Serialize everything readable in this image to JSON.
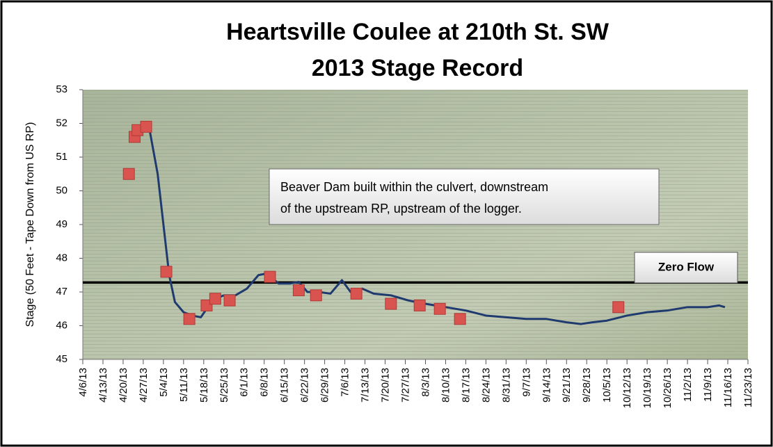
{
  "chart_data": {
    "type": "line",
    "title": "Heartsville Coulee at 210th St. SW",
    "subtitle": "2013 Stage Record",
    "y_label": "Stage (50 Feet - Tape Down from US RP)",
    "ylim": [
      45,
      53
    ],
    "yticks": [
      45,
      46,
      47,
      48,
      49,
      50,
      51,
      52,
      53
    ],
    "xlim": [
      "2013-04-06",
      "2013-11-23"
    ],
    "xticks": [
      {
        "value": "2013-04-06",
        "label": "4/6/13"
      },
      {
        "value": "2013-04-13",
        "label": "4/13/13"
      },
      {
        "value": "2013-04-20",
        "label": "4/20/13"
      },
      {
        "value": "2013-04-27",
        "label": "4/27/13"
      },
      {
        "value": "2013-05-04",
        "label": "5/4/13"
      },
      {
        "value": "2013-05-11",
        "label": "5/11/13"
      },
      {
        "value": "2013-05-18",
        "label": "5/18/13"
      },
      {
        "value": "2013-05-25",
        "label": "5/25/13"
      },
      {
        "value": "2013-06-01",
        "label": "6/1/13"
      },
      {
        "value": "2013-06-08",
        "label": "6/8/13"
      },
      {
        "value": "2013-06-15",
        "label": "6/15/13"
      },
      {
        "value": "2013-06-22",
        "label": "6/22/13"
      },
      {
        "value": "2013-06-29",
        "label": "6/29/13"
      },
      {
        "value": "2013-07-06",
        "label": "7/6/13"
      },
      {
        "value": "2013-07-13",
        "label": "7/13/13"
      },
      {
        "value": "2013-07-20",
        "label": "7/20/13"
      },
      {
        "value": "2013-07-27",
        "label": "7/27/13"
      },
      {
        "value": "2013-08-03",
        "label": "8/3/13"
      },
      {
        "value": "2013-08-10",
        "label": "8/10/13"
      },
      {
        "value": "2013-08-17",
        "label": "8/17/13"
      },
      {
        "value": "2013-08-24",
        "label": "8/24/13"
      },
      {
        "value": "2013-08-31",
        "label": "8/31/13"
      },
      {
        "value": "2013-09-07",
        "label": "9/7/13"
      },
      {
        "value": "2013-09-14",
        "label": "9/14/13"
      },
      {
        "value": "2013-09-21",
        "label": "9/21/13"
      },
      {
        "value": "2013-09-28",
        "label": "9/28/13"
      },
      {
        "value": "2013-10-05",
        "label": "10/5/13"
      },
      {
        "value": "2013-10-12",
        "label": "10/12/13"
      },
      {
        "value": "2013-10-19",
        "label": "10/19/13"
      },
      {
        "value": "2013-10-26",
        "label": "10/26/13"
      },
      {
        "value": "2013-11-02",
        "label": "11/2/13"
      },
      {
        "value": "2013-11-09",
        "label": "11/9/13"
      },
      {
        "value": "2013-11-16",
        "label": "11/16/13"
      },
      {
        "value": "2013-11-23",
        "label": "11/23/13"
      }
    ],
    "series": [
      {
        "kind": "line",
        "color": "#1f3a6e",
        "x": [
          "2013-04-24",
          "2013-04-26",
          "2013-04-29",
          "2013-05-02",
          "2013-05-04",
          "2013-05-06",
          "2013-05-08",
          "2013-05-11",
          "2013-05-14",
          "2013-05-17",
          "2013-05-19",
          "2013-05-22",
          "2013-05-25",
          "2013-05-29",
          "2013-06-02",
          "2013-06-06",
          "2013-06-09",
          "2013-06-13",
          "2013-06-17",
          "2013-06-20",
          "2013-06-23",
          "2013-06-27",
          "2013-07-01",
          "2013-07-05",
          "2013-07-08",
          "2013-07-12",
          "2013-07-16",
          "2013-07-22",
          "2013-07-28",
          "2013-08-03",
          "2013-08-10",
          "2013-08-17",
          "2013-08-24",
          "2013-08-31",
          "2013-09-07",
          "2013-09-14",
          "2013-09-21",
          "2013-09-26",
          "2013-09-30",
          "2013-10-05",
          "2013-10-12",
          "2013-10-19",
          "2013-10-26",
          "2013-11-02",
          "2013-11-09",
          "2013-11-13",
          "2013-11-15"
        ],
        "values": [
          51.5,
          51.8,
          51.9,
          50.5,
          49,
          47.5,
          46.7,
          46.4,
          46.3,
          46.25,
          46.5,
          46.8,
          46.9,
          46.9,
          47.1,
          47.5,
          47.55,
          47.25,
          47.25,
          47.3,
          47.0,
          47.0,
          46.95,
          47.35,
          47.0,
          47.1,
          46.95,
          46.9,
          46.75,
          46.65,
          46.55,
          46.45,
          46.3,
          46.25,
          46.2,
          46.2,
          46.1,
          46.05,
          46.1,
          46.15,
          46.3,
          46.4,
          46.45,
          46.55,
          46.55,
          46.6,
          46.55
        ]
      },
      {
        "kind": "scatter",
        "color": "#d9534f",
        "x": [
          "2013-04-22",
          "2013-04-24",
          "2013-04-25",
          "2013-04-28",
          "2013-05-05",
          "2013-05-13",
          "2013-05-19",
          "2013-05-22",
          "2013-05-27",
          "2013-06-10",
          "2013-06-20",
          "2013-06-26",
          "2013-07-10",
          "2013-07-22",
          "2013-08-01",
          "2013-08-08",
          "2013-08-15",
          "2013-10-09"
        ],
        "values": [
          50.5,
          51.6,
          51.8,
          51.9,
          47.6,
          46.2,
          46.6,
          46.8,
          46.75,
          47.45,
          47.05,
          46.9,
          46.95,
          46.65,
          46.6,
          46.5,
          46.2,
          46.55
        ]
      }
    ],
    "reference_line": {
      "value": 47.28,
      "label": "Zero Flow"
    },
    "annotations": [
      {
        "lines": [
          "Beaver Dam built within the culvert, downstream",
          "of the upstream  RP, upstream  of the logger."
        ]
      }
    ]
  }
}
